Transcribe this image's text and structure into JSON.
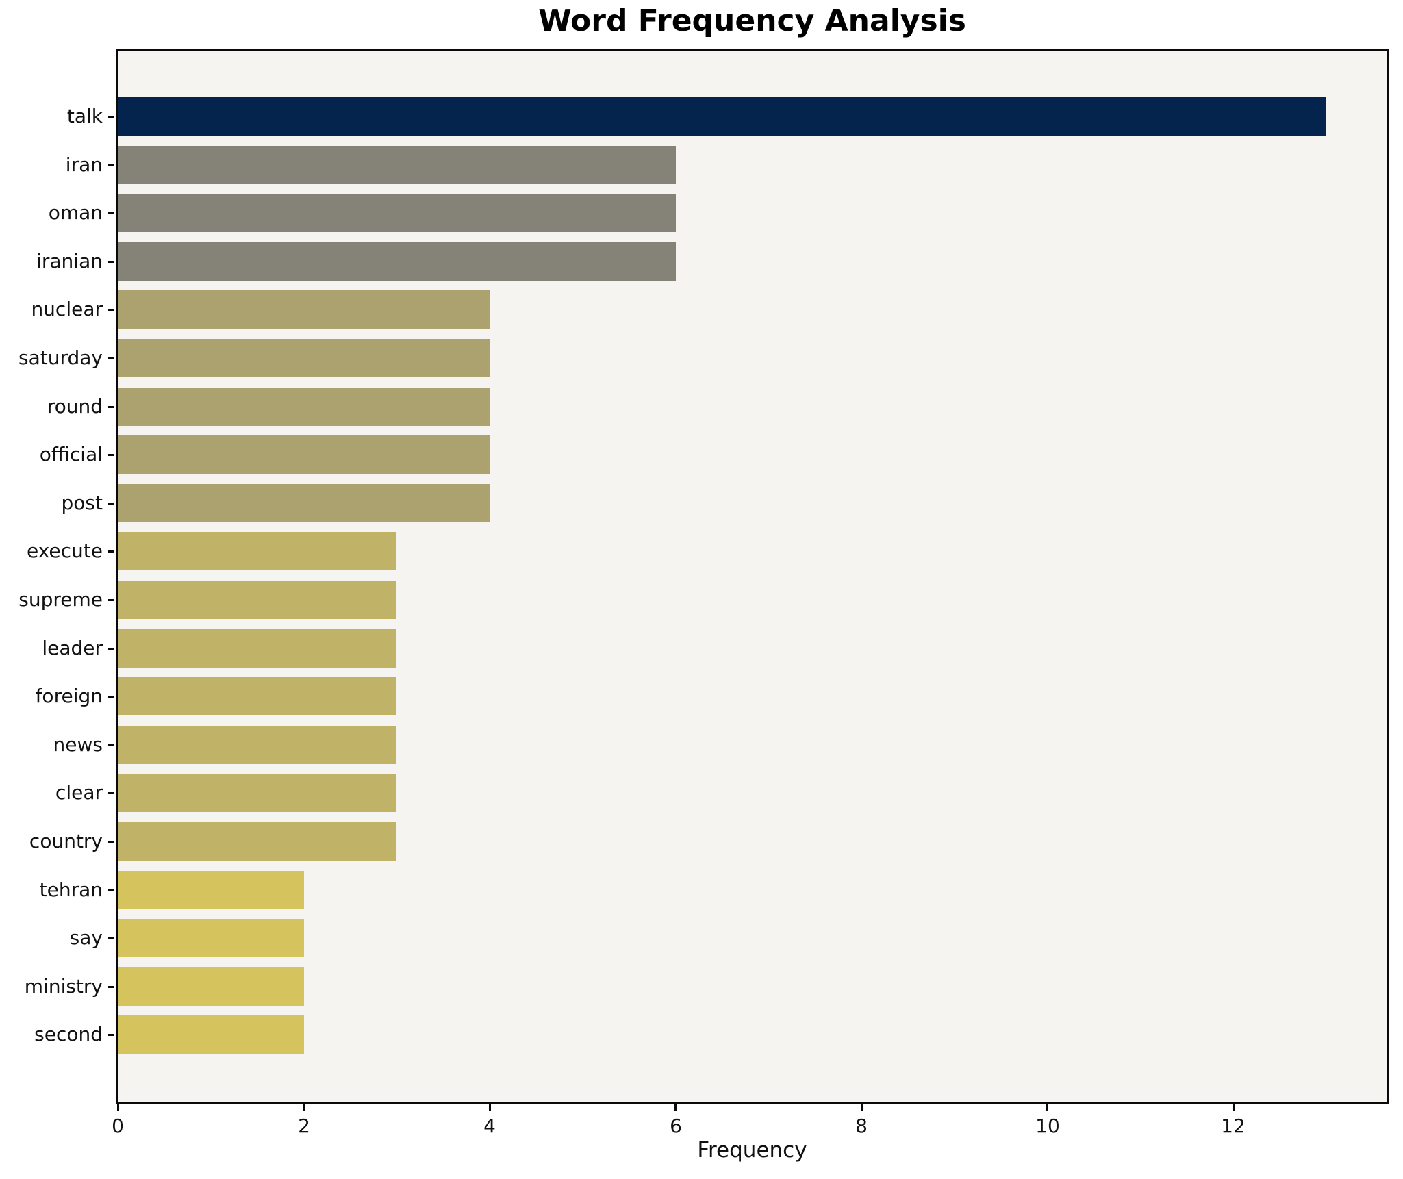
{
  "figure": {
    "title": "Word Frequency Analysis",
    "xlabel": "Frequency"
  },
  "chart_data": {
    "type": "bar",
    "orientation": "horizontal",
    "title": "Word Frequency Analysis",
    "xlabel": "Frequency",
    "ylabel": "",
    "categories": [
      "talk",
      "iran",
      "oman",
      "iranian",
      "nuclear",
      "saturday",
      "round",
      "official",
      "post",
      "execute",
      "supreme",
      "leader",
      "foreign",
      "news",
      "clear",
      "country",
      "tehran",
      "say",
      "ministry",
      "second"
    ],
    "values": [
      13,
      6,
      6,
      6,
      4,
      4,
      4,
      4,
      4,
      3,
      3,
      3,
      3,
      3,
      3,
      3,
      2,
      2,
      2,
      2
    ],
    "bar_colors": [
      "#04234d",
      "#858278",
      "#858278",
      "#858278",
      "#aca26f",
      "#aca26f",
      "#aca26f",
      "#aca26f",
      "#aca26f",
      "#c0b368",
      "#c0b368",
      "#c0b368",
      "#c0b368",
      "#c0b368",
      "#c0b368",
      "#c0b368",
      "#d5c45d",
      "#d5c45d",
      "#d5c45d",
      "#d5c45d"
    ],
    "xlim": [
      0,
      13.65
    ],
    "xticks": [
      0,
      2,
      4,
      6,
      8,
      10,
      12
    ],
    "grid": false,
    "legend_position": "none",
    "plot_bg_color": "#f5f4f1",
    "figure_bg_color": "#ffffff",
    "axis_color": "#0a0a0a"
  }
}
